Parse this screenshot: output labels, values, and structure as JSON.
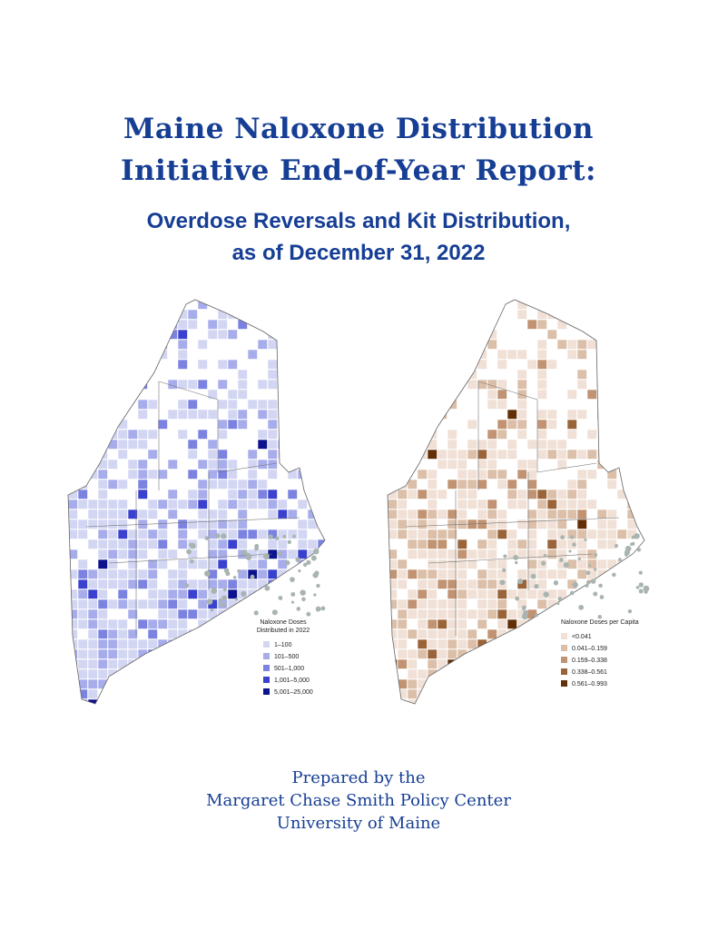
{
  "header": {
    "title_lines": [
      "Maine Naloxone Distribution",
      "Initiative End-of-Year Report:"
    ],
    "subtitle_lines": [
      "Overdose Reversals and Kit Distribution,",
      "as of December 31, 2022"
    ]
  },
  "maps": [
    {
      "legend": {
        "title_lines": [
          "Naloxone Doses",
          "Distributed in 2022"
        ],
        "items": [
          {
            "label": "1–100",
            "color": "#d3d6f2"
          },
          {
            "label": "101–500",
            "color": "#a7aceb"
          },
          {
            "label": "501–1,000",
            "color": "#7b82e0"
          },
          {
            "label": "1,001–5,000",
            "color": "#3a41cf"
          },
          {
            "label": "5,001–25,000",
            "color": "#0d128f"
          }
        ]
      }
    },
    {
      "legend": {
        "title_lines": [
          "Naloxone Doses per Capita"
        ],
        "items": [
          {
            "label": "<0.041",
            "color": "#f0e0d6"
          },
          {
            "label": "0.041–0.159",
            "color": "#dcbfa8"
          },
          {
            "label": "0.159–0.338",
            "color": "#c19372"
          },
          {
            "label": "0.338–0.561",
            "color": "#9a6438"
          },
          {
            "label": "0.561–0.993",
            "color": "#633006"
          }
        ]
      }
    }
  ],
  "footer": {
    "lines": [
      "Prepared by the",
      "Margaret Chase Smith Policy Center",
      "University of Maine"
    ]
  }
}
